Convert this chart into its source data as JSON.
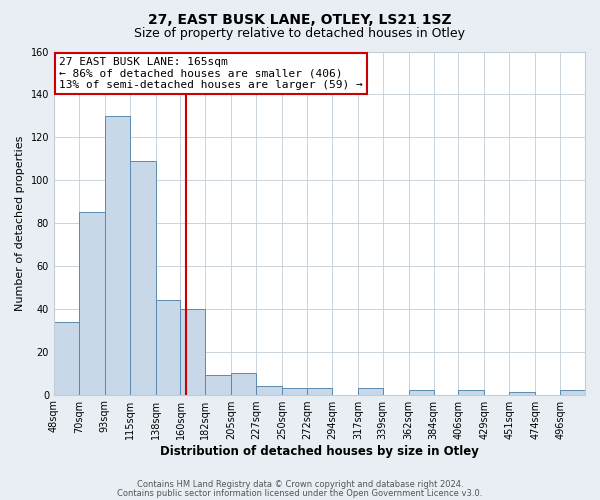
{
  "title": "27, EAST BUSK LANE, OTLEY, LS21 1SZ",
  "subtitle": "Size of property relative to detached houses in Otley",
  "xlabel": "Distribution of detached houses by size in Otley",
  "ylabel": "Number of detached properties",
  "bin_labels": [
    "48sqm",
    "70sqm",
    "93sqm",
    "115sqm",
    "138sqm",
    "160sqm",
    "182sqm",
    "205sqm",
    "227sqm",
    "250sqm",
    "272sqm",
    "294sqm",
    "317sqm",
    "339sqm",
    "362sqm",
    "384sqm",
    "406sqm",
    "429sqm",
    "451sqm",
    "474sqm",
    "496sqm"
  ],
  "bin_edges": [
    48,
    70,
    93,
    115,
    138,
    160,
    182,
    205,
    227,
    250,
    272,
    294,
    317,
    339,
    362,
    384,
    406,
    429,
    451,
    474,
    496
  ],
  "bar_heights": [
    34,
    85,
    130,
    109,
    44,
    40,
    9,
    10,
    4,
    3,
    3,
    0,
    3,
    0,
    2,
    0,
    2,
    0,
    1,
    0,
    2
  ],
  "bar_color": "#c8d8e8",
  "bar_edge_color": "#5a8ab0",
  "property_value": 165,
  "vline_color": "#cc0000",
  "annotation_line1": "27 EAST BUSK LANE: 165sqm",
  "annotation_line2": "← 86% of detached houses are smaller (406)",
  "annotation_line3": "13% of semi-detached houses are larger (59) →",
  "annotation_box_color": "#ffffff",
  "annotation_box_edge": "#cc0000",
  "ylim": [
    0,
    160
  ],
  "yticks": [
    0,
    20,
    40,
    60,
    80,
    100,
    120,
    140,
    160
  ],
  "grid_color": "#c0cdd8",
  "plot_bg_color": "#ffffff",
  "figure_bg_color": "#e8eef4",
  "footer_line1": "Contains HM Land Registry data © Crown copyright and database right 2024.",
  "footer_line2": "Contains public sector information licensed under the Open Government Licence v3.0.",
  "title_fontsize": 10,
  "subtitle_fontsize": 9,
  "xlabel_fontsize": 8.5,
  "ylabel_fontsize": 8,
  "tick_fontsize": 7,
  "annotation_fontsize": 8,
  "footer_fontsize": 6
}
